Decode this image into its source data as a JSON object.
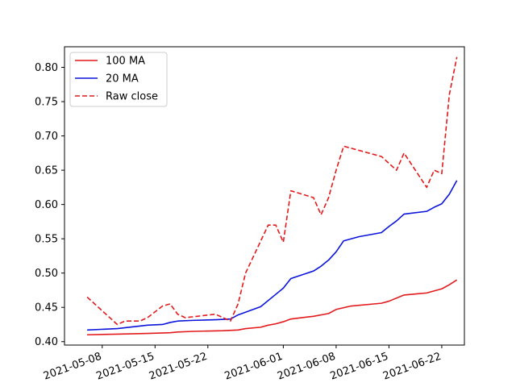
{
  "chart_data": {
    "type": "line",
    "title": "",
    "xlabel": "",
    "ylabel": "",
    "xlim": [
      "2021-05-03",
      "2021-06-25"
    ],
    "ylim": [
      0.395,
      0.83
    ],
    "grid": false,
    "legend_position": "top-left",
    "x_ticks": [
      "2021-05-08",
      "2021-05-15",
      "2021-05-22",
      "2021-06-01",
      "2021-06-08",
      "2021-06-15",
      "2021-06-22"
    ],
    "y_ticks": [
      "0.40",
      "0.45",
      "0.50",
      "0.55",
      "0.60",
      "0.65",
      "0.70",
      "0.75",
      "0.80"
    ],
    "series": [
      {
        "name": "100 MA",
        "color": "#e31a1c",
        "dash": "solid",
        "points": [
          [
            "2021-05-06",
            0.41
          ],
          [
            "2021-05-10",
            0.411
          ],
          [
            "2021-05-14",
            0.412
          ],
          [
            "2021-05-17",
            0.413
          ],
          [
            "2021-05-18",
            0.414
          ],
          [
            "2021-05-20",
            0.415
          ],
          [
            "2021-05-24",
            0.416
          ],
          [
            "2021-05-26",
            0.417
          ],
          [
            "2021-05-27",
            0.419
          ],
          [
            "2021-05-29",
            0.421
          ],
          [
            "2021-05-30",
            0.424
          ],
          [
            "2021-05-31",
            0.426
          ],
          [
            "2021-06-01",
            0.429
          ],
          [
            "2021-06-02",
            0.433
          ],
          [
            "2021-06-05",
            0.437
          ],
          [
            "2021-06-07",
            0.441
          ],
          [
            "2021-06-08",
            0.447
          ],
          [
            "2021-06-10",
            0.452
          ],
          [
            "2021-06-14",
            0.456
          ],
          [
            "2021-06-15",
            0.459
          ],
          [
            "2021-06-17",
            0.468
          ],
          [
            "2021-06-19",
            0.47
          ],
          [
            "2021-06-20",
            0.471
          ],
          [
            "2021-06-22",
            0.477
          ],
          [
            "2021-06-23",
            0.483
          ],
          [
            "2021-06-24",
            0.49
          ]
        ]
      },
      {
        "name": "20 MA",
        "color": "#0a14dc",
        "dash": "solid",
        "points": [
          [
            "2021-05-06",
            0.417
          ],
          [
            "2021-05-10",
            0.419
          ],
          [
            "2021-05-14",
            0.424
          ],
          [
            "2021-05-16",
            0.425
          ],
          [
            "2021-05-17",
            0.428
          ],
          [
            "2021-05-18",
            0.43
          ],
          [
            "2021-05-20",
            0.431
          ],
          [
            "2021-05-23",
            0.432
          ],
          [
            "2021-05-25",
            0.433
          ],
          [
            "2021-05-26",
            0.439
          ],
          [
            "2021-05-29",
            0.451
          ],
          [
            "2021-05-31",
            0.469
          ],
          [
            "2021-06-01",
            0.478
          ],
          [
            "2021-06-02",
            0.492
          ],
          [
            "2021-06-05",
            0.503
          ],
          [
            "2021-06-06",
            0.51
          ],
          [
            "2021-06-07",
            0.519
          ],
          [
            "2021-06-08",
            0.531
          ],
          [
            "2021-06-09",
            0.547
          ],
          [
            "2021-06-11",
            0.553
          ],
          [
            "2021-06-14",
            0.559
          ],
          [
            "2021-06-15",
            0.568
          ],
          [
            "2021-06-16",
            0.576
          ],
          [
            "2021-06-17",
            0.586
          ],
          [
            "2021-06-20",
            0.59
          ],
          [
            "2021-06-21",
            0.596
          ],
          [
            "2021-06-22",
            0.601
          ],
          [
            "2021-06-23",
            0.615
          ],
          [
            "2021-06-24",
            0.635
          ]
        ]
      },
      {
        "name": "Raw close",
        "color": "#e31a1c",
        "dash": "dashed",
        "points": [
          [
            "2021-05-06",
            0.465
          ],
          [
            "2021-05-08",
            0.445
          ],
          [
            "2021-05-10",
            0.425
          ],
          [
            "2021-05-11",
            0.43
          ],
          [
            "2021-05-13",
            0.43
          ],
          [
            "2021-05-14",
            0.435
          ],
          [
            "2021-05-16",
            0.452
          ],
          [
            "2021-05-17",
            0.455
          ],
          [
            "2021-05-18",
            0.44
          ],
          [
            "2021-05-19",
            0.435
          ],
          [
            "2021-05-23",
            0.44
          ],
          [
            "2021-05-25",
            0.43
          ],
          [
            "2021-05-26",
            0.455
          ],
          [
            "2021-05-27",
            0.5
          ],
          [
            "2021-05-30",
            0.57
          ],
          [
            "2021-05-31",
            0.57
          ],
          [
            "2021-06-01",
            0.545
          ],
          [
            "2021-06-02",
            0.62
          ],
          [
            "2021-06-05",
            0.61
          ],
          [
            "2021-06-06",
            0.585
          ],
          [
            "2021-06-07",
            0.61
          ],
          [
            "2021-06-08",
            0.65
          ],
          [
            "2021-06-09",
            0.685
          ],
          [
            "2021-06-14",
            0.67
          ],
          [
            "2021-06-16",
            0.65
          ],
          [
            "2021-06-17",
            0.675
          ],
          [
            "2021-06-20",
            0.625
          ],
          [
            "2021-06-21",
            0.65
          ],
          [
            "2021-06-22",
            0.645
          ],
          [
            "2021-06-23",
            0.76
          ],
          [
            "2021-06-24",
            0.815
          ]
        ]
      }
    ]
  }
}
